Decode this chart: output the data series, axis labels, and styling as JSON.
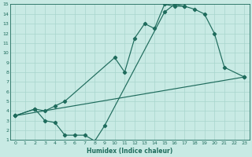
{
  "xlabel": "Humidex (Indice chaleur)",
  "bg_color": "#c8eae4",
  "line_color": "#1e6b5c",
  "grid_color": "#a8d5cc",
  "xlim": [
    -0.5,
    23.5
  ],
  "ylim": [
    1,
    15
  ],
  "xticks": [
    0,
    1,
    2,
    3,
    4,
    5,
    6,
    7,
    8,
    9,
    10,
    11,
    12,
    13,
    14,
    15,
    16,
    17,
    18,
    19,
    20,
    21,
    22,
    23
  ],
  "yticks": [
    1,
    2,
    3,
    4,
    5,
    6,
    7,
    8,
    9,
    10,
    11,
    12,
    13,
    14,
    15
  ],
  "line1_x": [
    0,
    2,
    3,
    4,
    5,
    10,
    11,
    12,
    13,
    14,
    15,
    16,
    17
  ],
  "line1_y": [
    3.5,
    4.2,
    4.0,
    4.5,
    5.0,
    9.5,
    8.0,
    11.5,
    13.0,
    12.5,
    15.0,
    14.8,
    14.8
  ],
  "line2_x": [
    0,
    2,
    3,
    4,
    5,
    6,
    7,
    8,
    9,
    15,
    16,
    17,
    18,
    19,
    20,
    21,
    23
  ],
  "line2_y": [
    3.5,
    4.2,
    3.0,
    2.8,
    1.5,
    1.5,
    1.5,
    0.9,
    2.5,
    14.2,
    15.0,
    14.8,
    14.5,
    14.0,
    12.0,
    8.5,
    7.5
  ],
  "line3_x": [
    0,
    23
  ],
  "line3_y": [
    3.5,
    7.5
  ]
}
